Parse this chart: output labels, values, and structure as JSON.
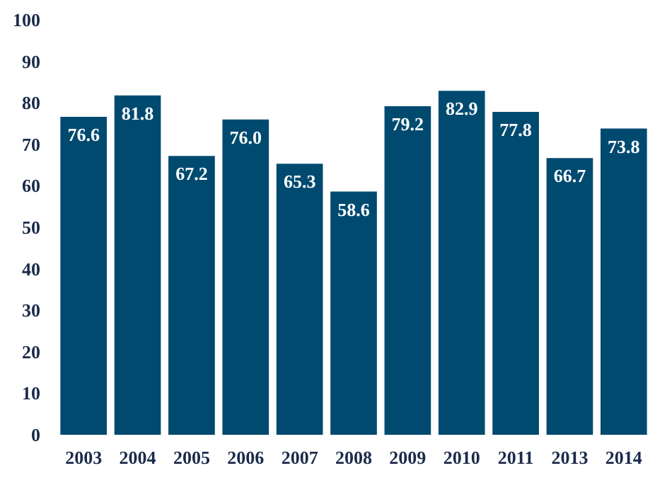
{
  "chart_data": {
    "type": "bar",
    "categories": [
      "2003",
      "2004",
      "2005",
      "2006",
      "2007",
      "2008",
      "2009",
      "2010",
      "2011",
      "2013",
      "2014"
    ],
    "values": [
      76.6,
      81.8,
      67.2,
      76.0,
      65.3,
      58.6,
      79.2,
      82.9,
      77.8,
      66.7,
      73.8
    ],
    "color": "#004a70",
    "ylim": [
      0,
      100
    ],
    "yticks": [
      0,
      10,
      20,
      30,
      40,
      50,
      60,
      70,
      80,
      90,
      100
    ],
    "grid": false,
    "value_labels": [
      "76.6",
      "81.8",
      "67.2",
      "76.0",
      "65.3",
      "58.6",
      "79.2",
      "82.9",
      "77.8",
      "66.7",
      "73.8"
    ]
  }
}
